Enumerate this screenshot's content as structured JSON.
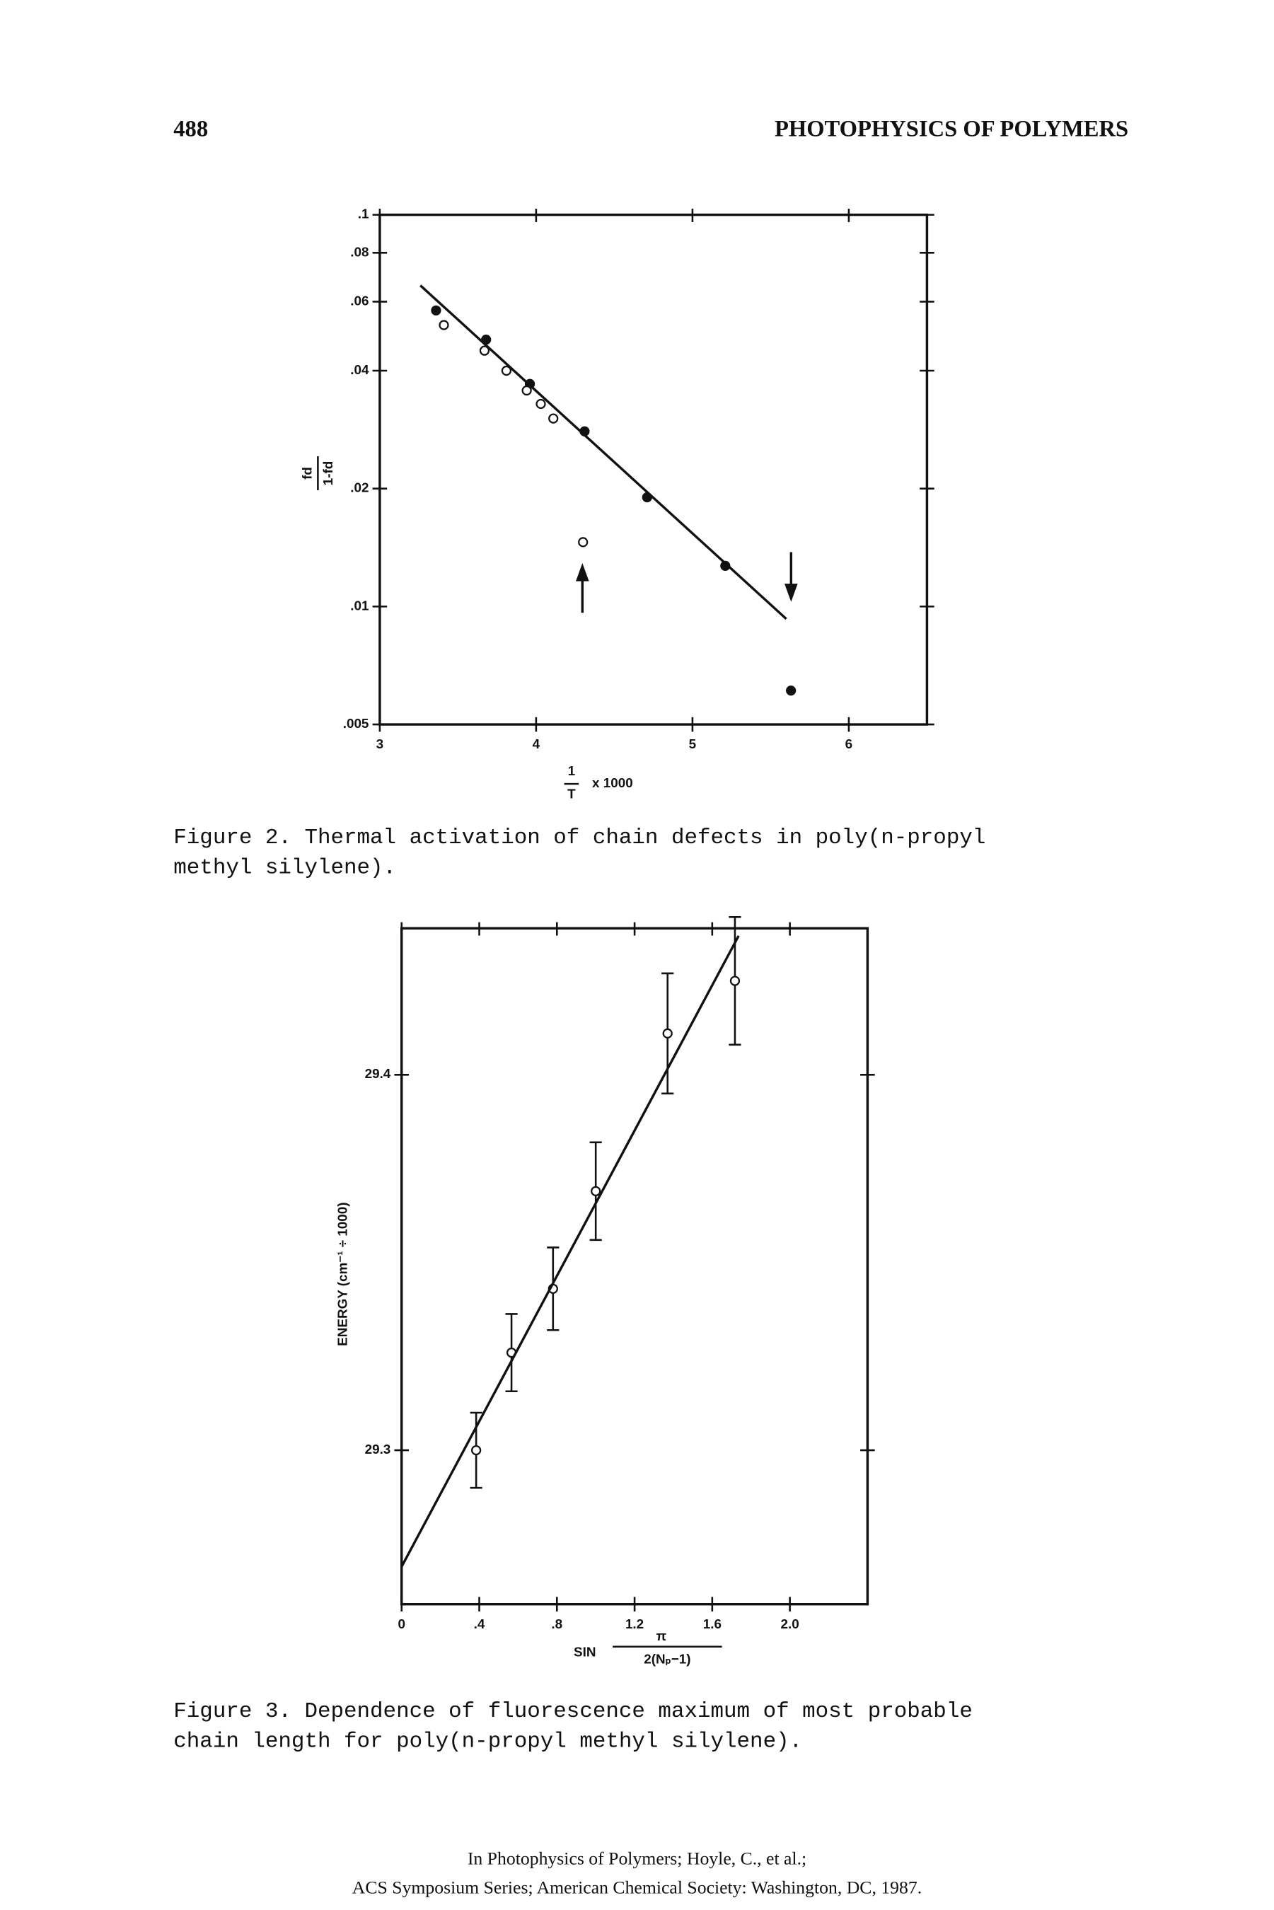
{
  "header": {
    "page_number": "488",
    "title": "PHOTOPHYSICS OF POLYMERS"
  },
  "chart_data": [
    {
      "type": "scatter",
      "y_scale": "log",
      "x_label": {
        "numerator": "1",
        "denominator": "T",
        "text": "x 1000"
      },
      "y_label": {
        "numerator": "fd",
        "denominator": "1-fd"
      },
      "xlim": [
        3,
        6.5
      ],
      "xticks": [
        3,
        4,
        5,
        6
      ],
      "ylim": [
        0.005,
        0.1
      ],
      "yticks": [
        {
          "value": 0.005,
          "label": ".005"
        },
        {
          "value": 0.01,
          "label": ".01"
        },
        {
          "value": 0.02,
          "label": ".02"
        },
        {
          "value": 0.04,
          "label": ".04"
        },
        {
          "value": 0.06,
          "label": ".06"
        },
        {
          "value": 0.08,
          "label": ".08"
        },
        {
          "value": 0.1,
          "label": ".1"
        }
      ],
      "series": [
        {
          "marker": "filled",
          "color": "#111111",
          "x": [
            3.36,
            3.68,
            3.96,
            4.31,
            4.71,
            5.21,
            5.63
          ],
          "values": [
            0.057,
            0.048,
            0.037,
            0.028,
            0.019,
            0.0127,
            0.0061
          ]
        },
        {
          "marker": "open",
          "color": "#111111",
          "x": [
            3.41,
            3.67,
            3.81,
            3.94,
            4.03,
            4.11,
            4.3
          ],
          "values": [
            0.0523,
            0.045,
            0.04,
            0.0356,
            0.0329,
            0.0302,
            0.0146
          ]
        },
        {
          "marker": "line",
          "color": "#111111",
          "x": [
            3.26,
            5.6
          ],
          "values": [
            0.066,
            0.0093
          ]
        }
      ]
    },
    {
      "type": "scatter",
      "x_label": {
        "prefix": "SIN",
        "numerator": "π",
        "denominator": "2(Nₚ−1)"
      },
      "y_label": "ENERGY (cm⁻¹ ÷ 1000)",
      "xlim": [
        0,
        2.4
      ],
      "xticks": [
        0,
        {
          "value": 0.4,
          "label": ".4"
        },
        {
          "value": 0.8,
          "label": ".8"
        },
        1.2,
        1.6,
        {
          "value": 2,
          "label": "2.0"
        }
      ],
      "ylim": [
        29.259,
        29.439
      ],
      "yticks": [
        29.3,
        29.4
      ],
      "series": [
        {
          "marker": "open",
          "color": "#111111",
          "x": [
            0.384,
            0.566,
            0.78,
            1.0,
            1.37,
            1.717
          ],
          "values": [
            29.3,
            29.326,
            29.343,
            29.369,
            29.411,
            29.425
          ],
          "errors": [
            0.01,
            0.0103,
            0.011,
            0.013,
            0.016,
            0.017
          ]
        },
        {
          "marker": "line",
          "color": "#111111",
          "x": [
            0,
            1.736
          ],
          "values": [
            29.269,
            29.437
          ]
        }
      ]
    }
  ],
  "captions": [
    [
      "Figure 2.  Thermal activation of chain defects in poly(n-propyl",
      "methyl silylene)."
    ],
    [
      "Figure 3.  Dependence of fluorescence maximum of most probable",
      "chain length for poly(n-propyl methyl silylene)."
    ]
  ],
  "footer": [
    "In Photophysics of Polymers; Hoyle, C., et al.;",
    "ACS Symposium Series; American Chemical Society: Washington, DC, 1987."
  ]
}
